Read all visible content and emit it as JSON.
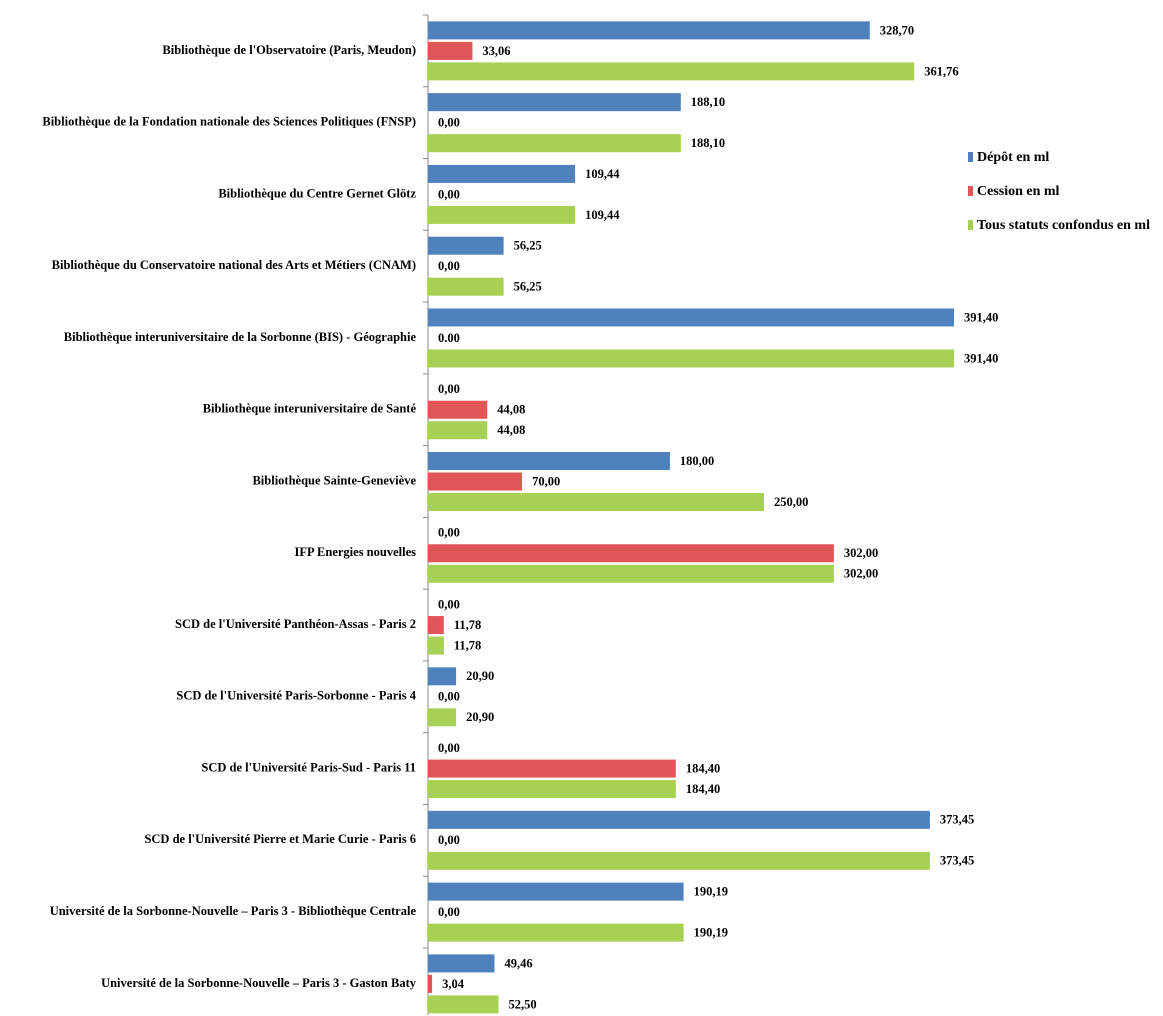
{
  "chart_data": {
    "type": "hbar",
    "categories": [
      "Bibliothèque de l'Observatoire (Paris, Meudon)",
      "Bibliothèque de la Fondation nationale des Sciences Politiques (FNSP)",
      "Bibliothèque du Centre Gernet Glötz",
      "Bibliothèque du Conservatoire national des Arts et Métiers (CNAM)",
      "Bibliothèque interuniversitaire de la Sorbonne (BIS) - Géographie",
      "Bibliothèque interuniversitaire de Santé",
      "Bibliothèque Sainte-Geneviève",
      "IFP Energies nouvelles",
      "SCD de l'Université Panthéon-Assas - Paris 2",
      "SCD de l'Université Paris-Sorbonne - Paris 4",
      "SCD de l'Université Paris-Sud - Paris 11",
      "SCD de l'Université Pierre et Marie Curie - Paris 6",
      "Université de la Sorbonne-Nouvelle – Paris 3 - Bibliothèque Centrale",
      "Université de la Sorbonne-Nouvelle – Paris 3 - Gaston Baty"
    ],
    "series": [
      {
        "name": "Dépôt en ml",
        "color": "#4f81bd",
        "values": [
          328.7,
          188.1,
          109.44,
          56.25,
          391.4,
          0,
          180.0,
          0,
          0,
          20.9,
          0,
          373.45,
          190.19,
          49.46
        ],
        "value_labels": [
          "328,70",
          "188,10",
          "109,44",
          "56,25",
          "391,40",
          "0,00",
          "180,00",
          "0,00",
          "0,00",
          "20,90",
          "0,00",
          "373,45",
          "190,19",
          "49,46"
        ]
      },
      {
        "name": "Cession en ml",
        "color": "#e05555",
        "values": [
          33.06,
          0,
          0,
          0,
          0,
          44.08,
          70.0,
          302.0,
          11.78,
          0,
          184.4,
          0,
          0,
          3.04
        ],
        "value_labels": [
          "33,06",
          "0,00",
          "0,00",
          "0,00",
          "0.00",
          "44,08",
          "70,00",
          "302,00",
          "11,78",
          "0,00",
          "184,40",
          "0,00",
          "0,00",
          "3,04"
        ]
      },
      {
        "name": "Tous statuts confondus en ml",
        "color": "#a6d154",
        "values": [
          361.76,
          188.1,
          109.44,
          56.25,
          391.4,
          44.08,
          250.0,
          302.0,
          11.78,
          20.9,
          184.4,
          373.45,
          190.19,
          52.5
        ],
        "value_labels": [
          "361,76",
          "188,10",
          "109,44",
          "56,25",
          "391,40",
          "44,08",
          "250,00",
          "302,00",
          "11,78",
          "20,90",
          "184,40",
          "373,45",
          "190,19",
          "52,50"
        ]
      }
    ],
    "xlim": [
      0,
      400
    ],
    "legend": "right"
  }
}
